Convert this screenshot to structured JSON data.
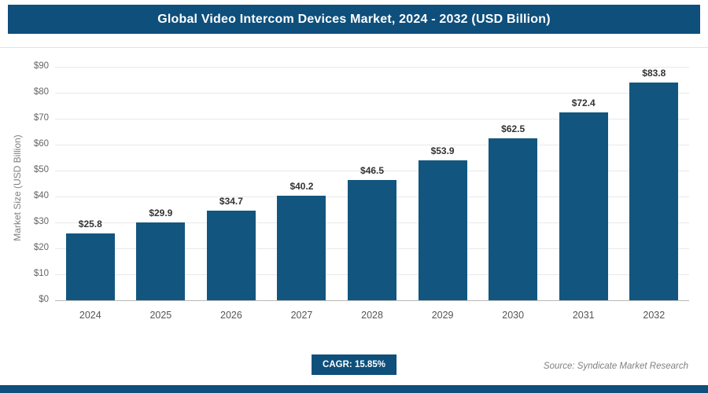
{
  "header": {
    "title": "Global Video Intercom Devices Market, 2024 - 2032 (USD Billion)"
  },
  "chart_data": {
    "type": "bar",
    "title": "Global Video Intercom Devices Market, 2024 - 2032 (USD Billion)",
    "categories": [
      "2024",
      "2025",
      "2026",
      "2027",
      "2028",
      "2029",
      "2030",
      "2031",
      "2032"
    ],
    "values": [
      25.8,
      29.9,
      34.7,
      40.2,
      46.5,
      53.9,
      62.5,
      72.4,
      83.8
    ],
    "value_labels": [
      "$25.8",
      "$29.9",
      "$34.7",
      "$40.2",
      "$46.5",
      "$53.9",
      "$62.5",
      "$72.4",
      "$83.8"
    ],
    "xlabel": "",
    "ylabel": "Market Size (USD Billion)",
    "ylim": [
      0,
      90
    ],
    "yticks": [
      0,
      10,
      20,
      30,
      40,
      50,
      60,
      70,
      80,
      90
    ],
    "ytick_labels": [
      "$0",
      "$10",
      "$20",
      "$30",
      "$40",
      "$50",
      "$60",
      "$70",
      "$80",
      "$90"
    ],
    "grid": true,
    "legend": "none",
    "bar_color": "#12567f"
  },
  "footer": {
    "cagr_label": "CAGR: 15.85%",
    "source": "Source: Syndicate Market Research"
  },
  "colors": {
    "navy": "#0e4f7b",
    "bar": "#12567f",
    "grid": "#e9e9e9",
    "axis": "#b9b9b9"
  }
}
